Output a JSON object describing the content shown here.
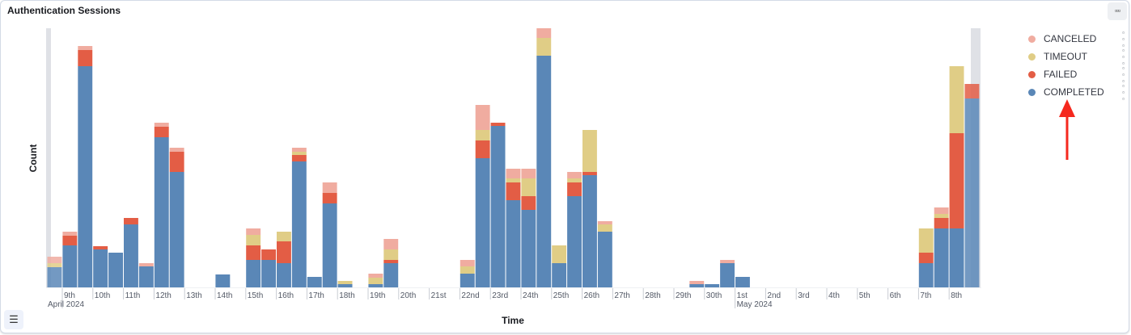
{
  "panel": {
    "title": "Authentication Sessions",
    "menu_icon": "ellipsis-icon",
    "list_icon": "list-icon"
  },
  "annotation": {
    "arrow_color": "#f5281e",
    "arrow_icon": "arrow-up-icon"
  },
  "chart_data": {
    "type": "bar",
    "stacked": true,
    "grid": false,
    "legend_position": "right",
    "xlabel": "Time",
    "ylabel": "Count",
    "ylim": [
      0,
      321
    ],
    "x_start": "2024-04-08 12:00",
    "x_interval_hours": 12,
    "x_tick_labels": [
      "9th",
      "10th",
      "11th",
      "12th",
      "13th",
      "14th",
      "15th",
      "16th",
      "17th",
      "18th",
      "19th",
      "20th",
      "21st",
      "22nd",
      "23rd",
      "24th",
      "25th",
      "26th",
      "27th",
      "28th",
      "29th",
      "30th",
      "1st",
      "2nd",
      "3rd",
      "4th",
      "5th",
      "6th",
      "7th",
      "8th"
    ],
    "x_month_labels": [
      {
        "label": "April 2024",
        "at_tick": 0
      },
      {
        "label": "May 2024",
        "at_tick": 22
      }
    ],
    "series": [
      {
        "name": "COMPLETED",
        "color": "#5a87b7",
        "values": [
          25,
          52,
          274,
          47,
          43,
          78,
          26,
          186,
          143,
          0,
          0,
          16,
          0,
          34,
          34,
          30,
          156,
          13,
          104,
          4,
          0,
          4,
          30,
          0,
          0,
          0,
          0,
          17,
          160,
          200,
          108,
          96,
          287,
          30,
          113,
          139,
          69,
          0,
          0,
          0,
          0,
          0,
          4,
          4,
          30,
          13,
          0,
          0,
          0,
          0,
          0,
          0,
          0,
          0,
          0,
          0,
          0,
          30,
          73,
          73,
          234
        ]
      },
      {
        "name": "FAILED",
        "color": "#e35d45",
        "values": [
          0,
          12,
          20,
          4,
          0,
          8,
          0,
          13,
          25,
          0,
          0,
          0,
          0,
          18,
          13,
          27,
          8,
          0,
          13,
          0,
          0,
          0,
          4,
          0,
          0,
          0,
          0,
          0,
          22,
          4,
          22,
          17,
          0,
          0,
          17,
          4,
          0,
          0,
          0,
          0,
          0,
          0,
          0,
          0,
          0,
          0,
          0,
          0,
          0,
          0,
          0,
          0,
          0,
          0,
          0,
          0,
          0,
          13,
          13,
          118,
          18
        ]
      },
      {
        "name": "TIMEOUT",
        "color": "#e0cd86",
        "values": [
          5,
          0,
          0,
          0,
          0,
          0,
          0,
          0,
          0,
          0,
          0,
          0,
          0,
          13,
          0,
          12,
          4,
          0,
          0,
          4,
          0,
          8,
          13,
          0,
          0,
          0,
          0,
          9,
          13,
          0,
          5,
          22,
          22,
          22,
          5,
          52,
          9,
          0,
          0,
          0,
          0,
          0,
          0,
          0,
          0,
          0,
          0,
          0,
          0,
          0,
          0,
          0,
          0,
          0,
          0,
          0,
          0,
          30,
          5,
          83,
          0
        ]
      },
      {
        "name": "CANCELED",
        "color": "#f0aca0",
        "values": [
          8,
          5,
          5,
          0,
          0,
          0,
          4,
          5,
          5,
          0,
          0,
          0,
          0,
          8,
          0,
          0,
          5,
          0,
          13,
          0,
          0,
          5,
          13,
          0,
          0,
          0,
          0,
          8,
          31,
          0,
          12,
          12,
          12,
          0,
          8,
          0,
          4,
          0,
          0,
          0,
          0,
          0,
          4,
          0,
          4,
          0,
          0,
          0,
          0,
          0,
          0,
          0,
          0,
          0,
          0,
          0,
          0,
          0,
          8,
          0,
          0
        ]
      }
    ],
    "legend_order": [
      "CANCELED",
      "TIMEOUT",
      "FAILED",
      "COMPLETED"
    ]
  }
}
